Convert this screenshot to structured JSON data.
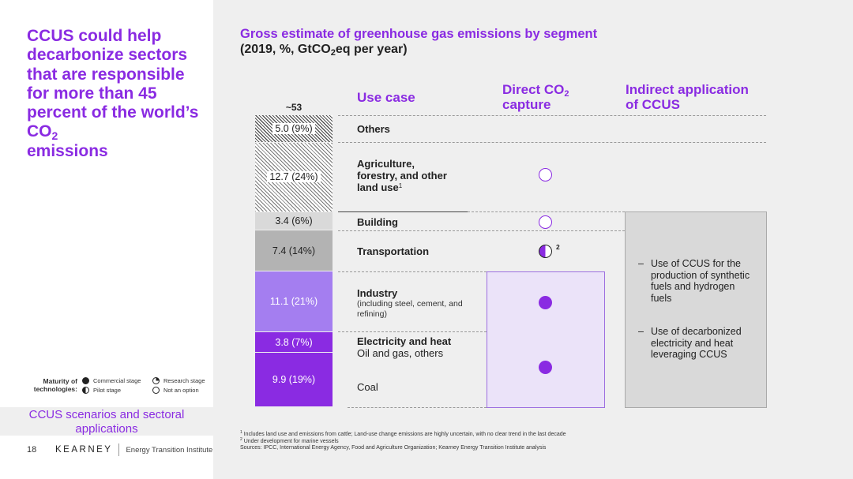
{
  "left": {
    "headline_part1": "CCUS could help decarbonize sectors that are responsible for more than 45 percent of the world’s CO",
    "headline_sub": "2",
    "headline_part2": "emissions",
    "legend": {
      "title_line1": "Maturity of",
      "title_line2": "technologies:",
      "commercial": "Commercial stage",
      "pilot": "Pilot stage",
      "research": "Research stage",
      "not_option": "Not an option"
    },
    "section_label_line1": "CCUS scenarios and sectoral",
    "section_label_line2": "applications",
    "footer": {
      "page_number": "18",
      "brand": "KEARNEY",
      "institute": "Energy Transition Institute"
    }
  },
  "chart": {
    "title": "Gross estimate of greenhouse gas emissions by segment",
    "subtitle_prefix": "(2019, %, GtCO",
    "subtitle_sub": "2",
    "subtitle_suffix": "eq per year)",
    "total_label": "~53",
    "col_use_case": "Use case",
    "col_direct_line1": "Direct CO",
    "col_direct_sub": "2",
    "col_direct_line2": "capture",
    "col_indirect_line1": "Indirect application",
    "col_indirect_line2": "of CCUS",
    "rows": {
      "others": "Others",
      "agri_line1": "Agriculture,",
      "agri_line2": "forestry, and other",
      "agri_line3": "land use",
      "agri_sup": "1",
      "building": "Building",
      "transportation": "Transportation",
      "transport_sup": "2",
      "industry": "Industry",
      "industry_note_line1": "(including steel, cement, and",
      "industry_note_line2": "refining)",
      "electricity": "Electricity and heat",
      "oil_gas": "Oil and gas, others",
      "coal": "Coal"
    },
    "indirect_bullets": {
      "dash": "–",
      "b1_line1": "Use of CCUS for the",
      "b1_line2": "production of synthetic",
      "b1_line3": "fuels and hydrogen",
      "b1_line4": "fuels",
      "b2_line1": "Use of decarbonized",
      "b2_line2": "electricity and heat",
      "b2_line3": "leveraging CCUS"
    },
    "footnotes": {
      "f1_num": "1",
      "f1": "Includes land use and emissions from cattle; Land-use change emissions are highly uncertain, with no clear trend in the last decade",
      "f2_num": "2",
      "f2": "Under development for marine vessels",
      "sources": "Sources: IPCC, International Energy Agency, Food and Agriculture Organization; Kearney Energy Transition Institute analysis"
    }
  },
  "colors": {
    "accent": "#8a2be2",
    "bar_others": "#555555",
    "bar_agri": "#777777",
    "bar_building": "#d9d9d9",
    "bar_transport": "#b3b3b3",
    "bar_industry": "#a47ef0",
    "bar_electricity": "#8a2be2",
    "bar_coal": "#8a2be2"
  },
  "chart_data": {
    "type": "bar",
    "title": "Gross estimate of greenhouse gas emissions by segment",
    "subtitle": "(2019, %, GtCO2eq per year)",
    "stacked": true,
    "total": "~53",
    "categories": [
      "Others",
      "Agriculture, forestry, and other land use",
      "Building",
      "Transportation",
      "Industry",
      "Electricity and heat",
      "Coal"
    ],
    "values": [
      5.0,
      12.7,
      3.4,
      7.4,
      11.1,
      3.8,
      9.9
    ],
    "percents": [
      9,
      24,
      6,
      14,
      21,
      7,
      19
    ],
    "labels": [
      "5.0 (9%)",
      "12.7 (24%)",
      "3.4 (6%)",
      "7.4 (14%)",
      "11.1 (21%)",
      "3.8 (7%)",
      "9.9 (19%)"
    ],
    "direct_co2_capture": [
      "",
      "not an option",
      "not an option",
      "pilot stage",
      "commercial stage",
      "commercial stage",
      "commercial stage"
    ],
    "indirect_application": [
      "",
      "",
      "yes",
      "yes",
      "yes",
      "yes",
      "yes"
    ]
  }
}
